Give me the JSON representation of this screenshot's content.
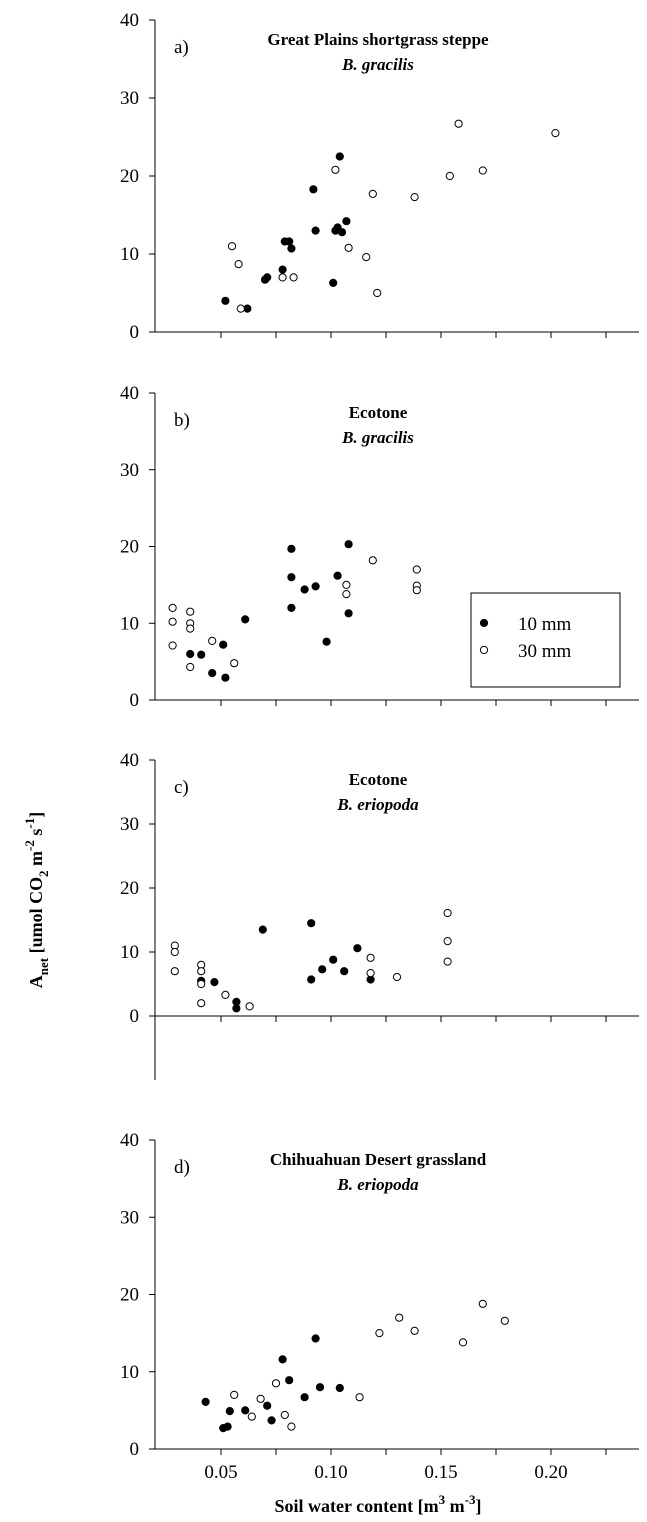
{
  "chart_data": {
    "type": "scatter",
    "xlabel": {
      "base": "Soil water content [m",
      "sup1": "3",
      "mid": " m",
      "sup2": "-3",
      "end": "]"
    },
    "ylabel": {
      "main": "A",
      "sub1": "net",
      "pre": " [umol CO",
      "sub2": "2",
      "mid1": " m",
      "sup1": "-2",
      "mid2": " s",
      "sup2": "-1",
      "end": "]"
    },
    "xlim": [
      0.02,
      0.24
    ],
    "x_ticks": [
      0.05,
      0.1,
      0.15,
      0.2
    ],
    "x_tick_labels": [
      "0.05",
      "0.10",
      "0.15",
      "0.20"
    ],
    "x_minor_ticks": [
      0.075,
      0.125,
      0.175,
      0.225
    ],
    "ylim_top": 40,
    "y_ticks": [
      0,
      10,
      20,
      30,
      40
    ],
    "y_tick_labels": [
      "0",
      "10",
      "20",
      "30",
      "40"
    ],
    "legend": {
      "placement": "panel b, right",
      "entries": [
        {
          "label": "10 mm",
          "marker": "filled"
        },
        {
          "label": "30 mm",
          "marker": "open"
        }
      ]
    },
    "panels": [
      {
        "letter": "a)",
        "title": "Great Plains shortgrass steppe",
        "species": "B. gracilis",
        "ylim": [
          0,
          40
        ],
        "series": [
          {
            "name": "10 mm",
            "marker": "filled",
            "points": [
              [
                0.052,
                4.0
              ],
              [
                0.062,
                3.0
              ],
              [
                0.07,
                6.7
              ],
              [
                0.071,
                7.0
              ],
              [
                0.078,
                8.0
              ],
              [
                0.079,
                11.6
              ],
              [
                0.081,
                11.6
              ],
              [
                0.082,
                10.7
              ],
              [
                0.092,
                18.3
              ],
              [
                0.093,
                13.0
              ],
              [
                0.101,
                6.3
              ],
              [
                0.102,
                13.0
              ],
              [
                0.103,
                13.4
              ],
              [
                0.104,
                22.5
              ],
              [
                0.105,
                12.8
              ],
              [
                0.107,
                14.2
              ]
            ]
          },
          {
            "name": "30 mm",
            "marker": "open",
            "points": [
              [
                0.055,
                11.0
              ],
              [
                0.058,
                8.7
              ],
              [
                0.059,
                3.0
              ],
              [
                0.078,
                7.0
              ],
              [
                0.083,
                7.0
              ],
              [
                0.102,
                20.8
              ],
              [
                0.108,
                10.8
              ],
              [
                0.116,
                9.6
              ],
              [
                0.119,
                17.7
              ],
              [
                0.121,
                5.0
              ],
              [
                0.138,
                17.3
              ],
              [
                0.154,
                20.0
              ],
              [
                0.158,
                26.7
              ],
              [
                0.169,
                20.7
              ],
              [
                0.202,
                25.5
              ]
            ]
          }
        ]
      },
      {
        "letter": "b)",
        "title": "Ecotone",
        "species": "B. gracilis",
        "ylim": [
          0,
          40
        ],
        "series": [
          {
            "name": "10 mm",
            "marker": "filled",
            "points": [
              [
                0.036,
                6.0
              ],
              [
                0.041,
                5.9
              ],
              [
                0.046,
                3.5
              ],
              [
                0.051,
                7.2
              ],
              [
                0.052,
                2.9
              ],
              [
                0.061,
                10.5
              ],
              [
                0.082,
                19.7
              ],
              [
                0.082,
                16.0
              ],
              [
                0.082,
                12.0
              ],
              [
                0.088,
                14.4
              ],
              [
                0.093,
                14.8
              ],
              [
                0.098,
                7.6
              ],
              [
                0.103,
                16.2
              ],
              [
                0.108,
                20.3
              ],
              [
                0.108,
                11.3
              ]
            ]
          },
          {
            "name": "30 mm",
            "marker": "open",
            "points": [
              [
                0.028,
                12.0
              ],
              [
                0.028,
                10.2
              ],
              [
                0.028,
                7.1
              ],
              [
                0.036,
                11.5
              ],
              [
                0.036,
                10.0
              ],
              [
                0.036,
                9.3
              ],
              [
                0.036,
                4.3
              ],
              [
                0.046,
                7.7
              ],
              [
                0.056,
                4.8
              ],
              [
                0.107,
                15.0
              ],
              [
                0.107,
                13.8
              ],
              [
                0.119,
                18.2
              ],
              [
                0.139,
                17.0
              ],
              [
                0.139,
                14.9
              ],
              [
                0.139,
                14.3
              ]
            ]
          }
        ]
      },
      {
        "letter": "c)",
        "title": "Ecotone",
        "species": "B. eriopoda",
        "ylim": [
          -10,
          40
        ],
        "series": [
          {
            "name": "10 mm",
            "marker": "filled",
            "points": [
              [
                0.041,
                5.5
              ],
              [
                0.047,
                5.3
              ],
              [
                0.057,
                2.2
              ],
              [
                0.057,
                1.2
              ],
              [
                0.069,
                13.5
              ],
              [
                0.091,
                14.5
              ],
              [
                0.091,
                5.7
              ],
              [
                0.096,
                7.3
              ],
              [
                0.101,
                8.8
              ],
              [
                0.106,
                7.0
              ],
              [
                0.112,
                10.6
              ],
              [
                0.118,
                5.7
              ]
            ]
          },
          {
            "name": "30 mm",
            "marker": "open",
            "points": [
              [
                0.029,
                11.0
              ],
              [
                0.029,
                10.0
              ],
              [
                0.029,
                7.0
              ],
              [
                0.041,
                8.0
              ],
              [
                0.041,
                7.0
              ],
              [
                0.041,
                5.0
              ],
              [
                0.041,
                2.0
              ],
              [
                0.052,
                3.3
              ],
              [
                0.063,
                1.5
              ],
              [
                0.118,
                9.1
              ],
              [
                0.118,
                6.7
              ],
              [
                0.13,
                6.1
              ],
              [
                0.153,
                16.1
              ],
              [
                0.153,
                11.7
              ],
              [
                0.153,
                8.5
              ]
            ]
          }
        ]
      },
      {
        "letter": "d)",
        "title": "Chihuahuan Desert grassland",
        "species": "B. eriopoda",
        "ylim": [
          0,
          40
        ],
        "series": [
          {
            "name": "10 mm",
            "marker": "filled",
            "points": [
              [
                0.043,
                6.1
              ],
              [
                0.051,
                2.7
              ],
              [
                0.053,
                2.9
              ],
              [
                0.054,
                4.9
              ],
              [
                0.061,
                5.0
              ],
              [
                0.071,
                5.6
              ],
              [
                0.073,
                3.7
              ],
              [
                0.078,
                11.6
              ],
              [
                0.081,
                8.9
              ],
              [
                0.088,
                6.7
              ],
              [
                0.093,
                14.3
              ],
              [
                0.095,
                8.0
              ],
              [
                0.104,
                7.9
              ]
            ]
          },
          {
            "name": "30 mm",
            "marker": "open",
            "points": [
              [
                0.056,
                7.0
              ],
              [
                0.064,
                4.2
              ],
              [
                0.068,
                6.5
              ],
              [
                0.075,
                8.5
              ],
              [
                0.079,
                4.4
              ],
              [
                0.082,
                2.9
              ],
              [
                0.113,
                6.7
              ],
              [
                0.122,
                15.0
              ],
              [
                0.131,
                17.0
              ],
              [
                0.138,
                15.3
              ],
              [
                0.16,
                13.8
              ],
              [
                0.169,
                18.8
              ],
              [
                0.179,
                16.6
              ]
            ]
          }
        ]
      }
    ]
  }
}
